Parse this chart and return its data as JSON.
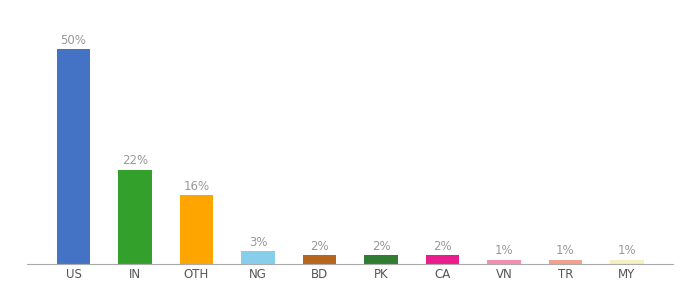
{
  "categories": [
    "US",
    "IN",
    "OTH",
    "NG",
    "BD",
    "PK",
    "CA",
    "VN",
    "TR",
    "MY"
  ],
  "values": [
    50,
    22,
    16,
    3,
    2,
    2,
    2,
    1,
    1,
    1
  ],
  "bar_colors": [
    "#4472C4",
    "#33A02C",
    "#FFA500",
    "#87CEEB",
    "#B5651D",
    "#2E7D32",
    "#E91E8C",
    "#F48FB1",
    "#F4A090",
    "#F5F0C0"
  ],
  "labels": [
    "50%",
    "22%",
    "16%",
    "3%",
    "2%",
    "2%",
    "2%",
    "1%",
    "1%",
    "1%"
  ],
  "ylim": [
    0,
    58
  ],
  "background_color": "#ffffff",
  "label_color": "#999999",
  "label_fontsize": 8.5,
  "tick_fontsize": 8.5
}
